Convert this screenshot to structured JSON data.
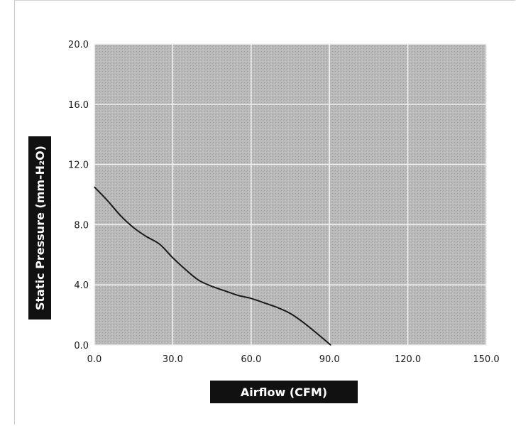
{
  "chart_data": {
    "type": "line",
    "title": "",
    "xlabel": "Airflow (CFM)",
    "ylabel": "Static Pressure (mm-H₂O)",
    "xlim": [
      0,
      150
    ],
    "ylim": [
      0,
      20
    ],
    "x_ticks": [
      "0.0",
      "30.0",
      "60.0",
      "90.0",
      "120.0",
      "150.0"
    ],
    "y_ticks": [
      "0.0",
      "4.0",
      "8.0",
      "12.0",
      "16.0",
      "20.0"
    ],
    "grid": true,
    "series": [
      {
        "x": [
          0,
          5,
          10,
          15,
          20,
          25,
          30,
          35,
          40,
          45,
          50,
          55,
          60,
          65,
          70,
          75,
          80,
          85,
          90.5
        ],
        "y": [
          10.5,
          9.6,
          8.6,
          7.8,
          7.2,
          6.7,
          5.8,
          5.0,
          4.3,
          3.9,
          3.6,
          3.3,
          3.1,
          2.8,
          2.5,
          2.1,
          1.5,
          0.8,
          0.0
        ]
      }
    ],
    "colors": {
      "plot_background": "#b9b9b9",
      "grid": "#f2f2f2",
      "line": "#1a1a1a",
      "label_background": "#111111"
    }
  }
}
